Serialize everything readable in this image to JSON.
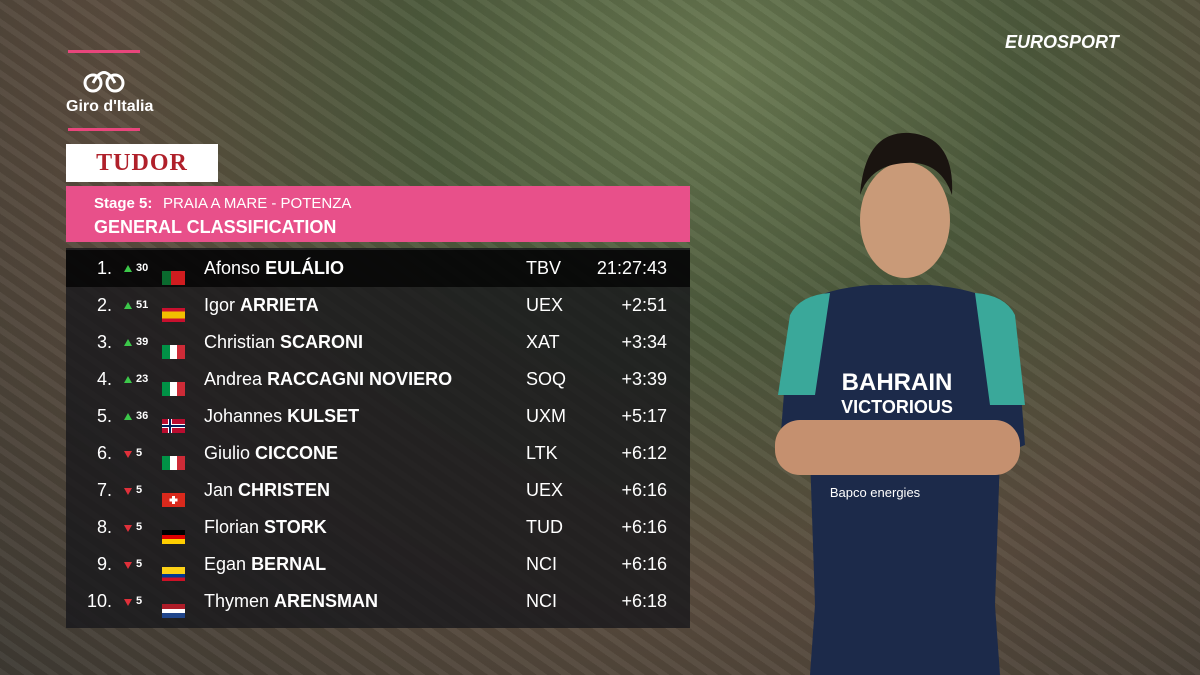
{
  "broadcaster": "EUROSPORT",
  "race_logo": "Giro d'Italia",
  "sponsor": "TUDOR",
  "header": {
    "stage_label": "Stage 5:",
    "route": "PRAIA A MARE - POTENZA",
    "title": "GENERAL CLASSIFICATION"
  },
  "table": {
    "rows": [
      {
        "rank": "1.",
        "trend": "up",
        "change": "30",
        "first_name": "Afonso",
        "last_name": "EULÁLIO",
        "team": "TBV",
        "time": "21:27:43"
      },
      {
        "rank": "2.",
        "trend": "up",
        "change": "51",
        "first_name": "Igor",
        "last_name": "ARRIETA",
        "team": "UEX",
        "time": "+2:51"
      },
      {
        "rank": "3.",
        "trend": "up",
        "change": "39",
        "first_name": "Christian",
        "last_name": "SCARONI",
        "team": "XAT",
        "time": "+3:34"
      },
      {
        "rank": "4.",
        "trend": "up",
        "change": "23",
        "first_name": "Andrea",
        "last_name": "RACCAGNI NOVIERO",
        "team": "SOQ",
        "time": "+3:39"
      },
      {
        "rank": "5.",
        "trend": "up",
        "change": "36",
        "first_name": "Johannes",
        "last_name": "KULSET",
        "team": "UXM",
        "time": "+5:17"
      },
      {
        "rank": "6.",
        "trend": "down",
        "change": "5",
        "first_name": "Giulio",
        "last_name": "CICCONE",
        "team": "LTK",
        "time": "+6:12"
      },
      {
        "rank": "7.",
        "trend": "down",
        "change": "5",
        "first_name": "Jan",
        "last_name": "CHRISTEN",
        "team": "UEX",
        "time": "+6:16"
      },
      {
        "rank": "8.",
        "trend": "down",
        "change": "5",
        "first_name": "Florian",
        "last_name": "STORK",
        "team": "TUD",
        "time": "+6:16"
      },
      {
        "rank": "9.",
        "trend": "down",
        "change": "5",
        "first_name": "Egan",
        "last_name": "BERNAL",
        "team": "NCI",
        "time": "+6:16"
      },
      {
        "rank": "10.",
        "trend": "down",
        "change": "5",
        "first_name": "Thymen",
        "last_name": "ARENSMAN",
        "team": "NCI",
        "time": "+6:18"
      }
    ]
  },
  "jersey": {
    "line1": "BAHRAIN",
    "line2": "VICTORIOUS",
    "line3": "Bapco energies"
  }
}
